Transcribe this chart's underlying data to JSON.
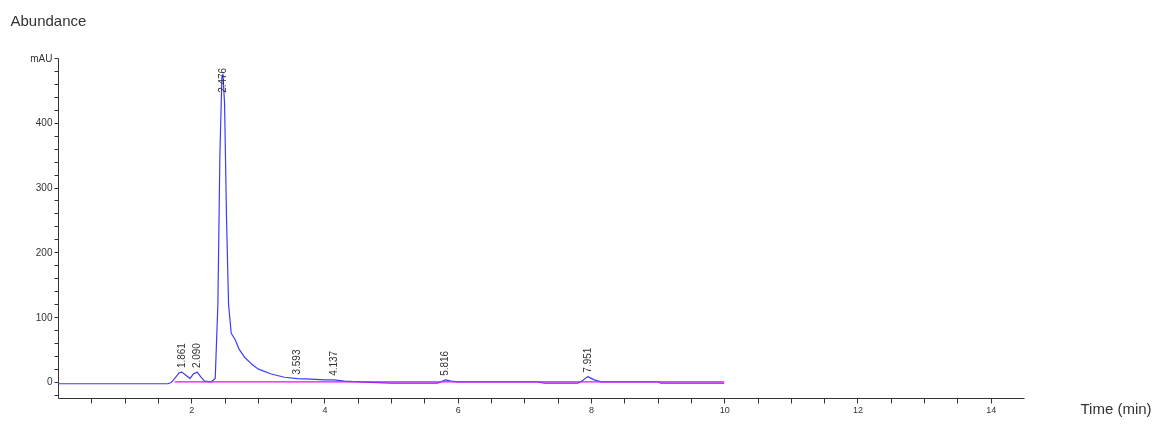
{
  "chart_data": {
    "type": "line",
    "xlabel": "Time (min)",
    "ylabel": "Abundance",
    "xlim": [
      0,
      14.5
    ],
    "ylim": [
      -25,
      500
    ],
    "xticks": [
      {
        "value": 0.5,
        "label": null
      },
      {
        "value": 1,
        "label": null
      },
      {
        "value": 1.5,
        "label": null
      },
      2,
      {
        "value": 2.5,
        "label": null
      },
      {
        "value": 3,
        "label": null
      },
      {
        "value": 3.5,
        "label": null
      },
      4,
      {
        "value": 4.5,
        "label": null
      },
      {
        "value": 5,
        "label": null
      },
      {
        "value": 5.5,
        "label": null
      },
      6,
      {
        "value": 6.5,
        "label": null
      },
      {
        "value": 7,
        "label": null
      },
      {
        "value": 7.5,
        "label": null
      },
      8,
      {
        "value": 8.5,
        "label": null
      },
      {
        "value": 9,
        "label": null
      },
      {
        "value": 9.5,
        "label": null
      },
      10,
      {
        "value": 10.5,
        "label": null
      },
      {
        "value": 11,
        "label": null
      },
      {
        "value": 11.5,
        "label": null
      },
      12,
      {
        "value": 12.5,
        "label": null
      },
      {
        "value": 13,
        "label": null
      },
      {
        "value": 13.5,
        "label": null
      },
      14
    ],
    "yticks": [
      {
        "value": -20,
        "label": null
      },
      0,
      {
        "value": 20,
        "label": null
      },
      {
        "value": 40,
        "label": null
      },
      {
        "value": 60,
        "label": null
      },
      {
        "value": 80,
        "label": null
      },
      100,
      {
        "value": 120,
        "label": null
      },
      {
        "value": 140,
        "label": null
      },
      {
        "value": 160,
        "label": null
      },
      {
        "value": 180,
        "label": null
      },
      200,
      {
        "value": 220,
        "label": null
      },
      {
        "value": 240,
        "label": null
      },
      {
        "value": 260,
        "label": null
      },
      {
        "value": 280,
        "label": null
      },
      300,
      {
        "value": 320,
        "label": null
      },
      {
        "value": 340,
        "label": null
      },
      {
        "value": 360,
        "label": null
      },
      {
        "value": 380,
        "label": null
      },
      400,
      {
        "value": 420,
        "label": null
      },
      {
        "value": 440,
        "label": null
      },
      {
        "value": 460,
        "label": null
      },
      {
        "value": 480,
        "label": null
      },
      {
        "value": 500,
        "label": "mAU"
      }
    ],
    "grid": false,
    "marker": "none",
    "line_style": "solid",
    "series": [
      {
        "color": "#3b3bff",
        "x": [
          0,
          1.65,
          1.7,
          1.75,
          1.82,
          1.861,
          1.92,
          1.98,
          2.03,
          2.09,
          2.14,
          2.2,
          2.3,
          2.36,
          2.4,
          2.43,
          2.46,
          2.476,
          2.5,
          2.53,
          2.56,
          2.6,
          2.66,
          2.72,
          2.8,
          2.9,
          3.0,
          3.2,
          3.4,
          3.593,
          3.8,
          4.0,
          4.137,
          4.3,
          4.5,
          5.0,
          5.7,
          5.75,
          5.816,
          5.9,
          6.0,
          7.2,
          7.3,
          7.8,
          7.85,
          7.951,
          8.05,
          8.15,
          9.0,
          9.05,
          10
        ],
        "values": [
          -3,
          -3,
          -1,
          5,
          14,
          15,
          10,
          5,
          12,
          15,
          8,
          1,
          0,
          5,
          120,
          350,
          470,
          475,
          430,
          250,
          120,
          75,
          65,
          50,
          38,
          28,
          20,
          12,
          7,
          5,
          4,
          3,
          3,
          1,
          0,
          -2,
          -2,
          0,
          3,
          1,
          0,
          0,
          -2,
          -2,
          0,
          8,
          3,
          0,
          0,
          -2,
          -2
        ]
      },
      {
        "color": "#ff00ff",
        "x": [
          1.75,
          10
        ],
        "values": [
          0,
          0
        ]
      }
    ],
    "annotations": [
      {
        "text": "1.861",
        "x": 1.861,
        "y": 15
      },
      {
        "text": "2.090",
        "x": 2.09,
        "y": 15
      },
      {
        "text": "2.476",
        "x": 2.476,
        "y": 440
      },
      {
        "text": "3.593",
        "x": 3.593,
        "y": 5
      },
      {
        "text": "4.137",
        "x": 4.137,
        "y": 3
      },
      {
        "text": "5.816",
        "x": 5.816,
        "y": 3
      },
      {
        "text": "7.951",
        "x": 7.951,
        "y": 8
      }
    ]
  }
}
